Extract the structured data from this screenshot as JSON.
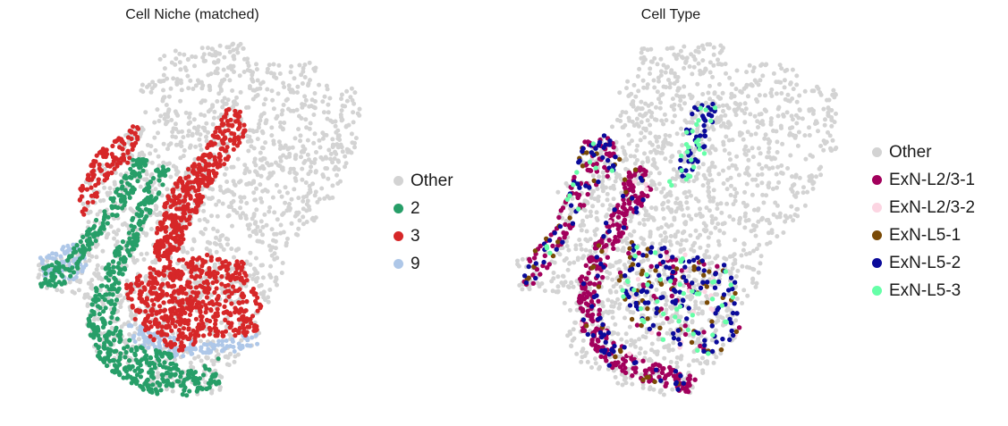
{
  "chart_data": [
    {
      "type": "scatter",
      "title": "Cell Niche (matched)",
      "axes_visible": false,
      "legend_placement": "right",
      "series": [
        {
          "name": "Other",
          "color": "#d3d3d3"
        },
        {
          "name": "2",
          "color": "#279e68"
        },
        {
          "name": "3",
          "color": "#d62728"
        },
        {
          "name": "9",
          "color": "#aec7e8"
        }
      ]
    },
    {
      "type": "scatter",
      "title": "Cell Type",
      "axes_visible": false,
      "legend_placement": "right",
      "series": [
        {
          "name": "Other",
          "color": "#d3d3d3"
        },
        {
          "name": "ExN-L2/3-1",
          "color": "#a2005c"
        },
        {
          "name": "ExN-L2/3-2",
          "color": "#fcd5e2"
        },
        {
          "name": "ExN-L5-1",
          "color": "#7a4a06"
        },
        {
          "name": "ExN-L5-2",
          "color": "#0a0a9a"
        },
        {
          "name": "ExN-L5-3",
          "color": "#66ffa8"
        }
      ]
    }
  ]
}
